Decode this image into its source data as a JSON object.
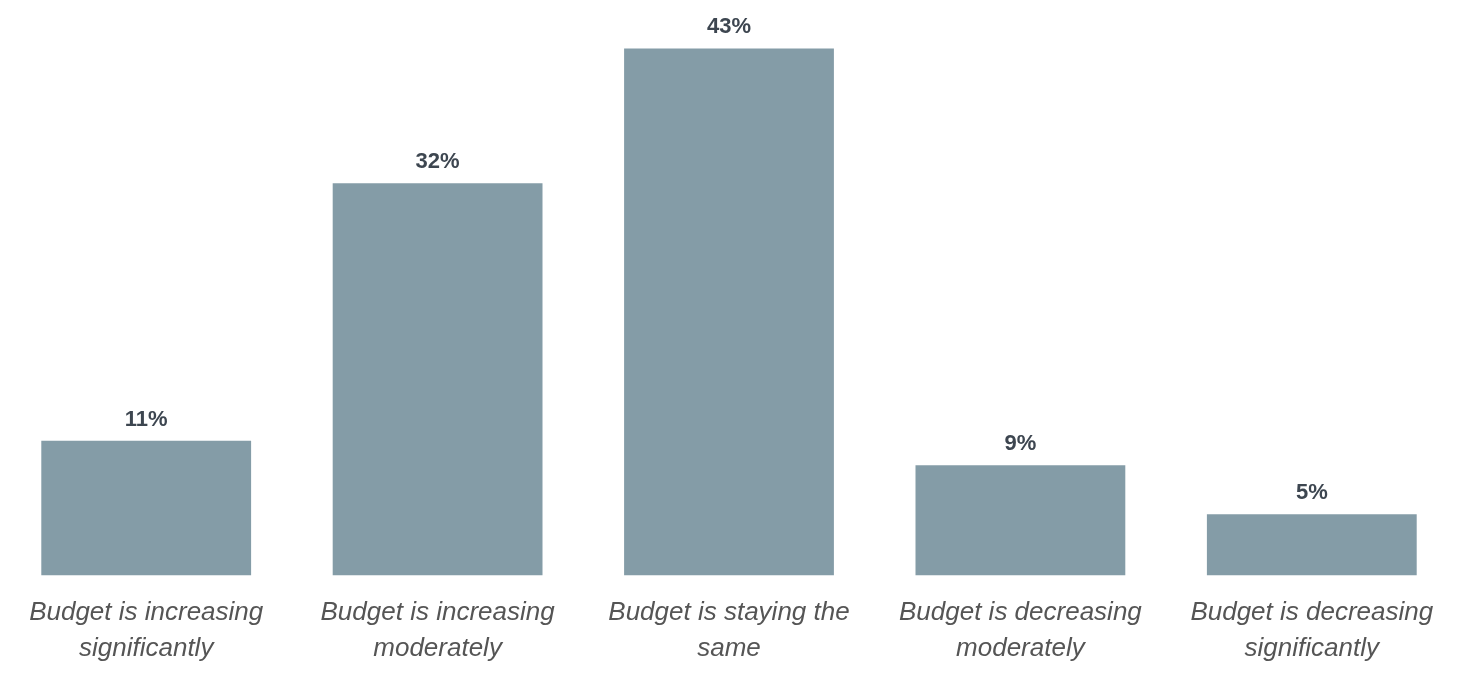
{
  "chart_data": {
    "type": "bar",
    "categories": [
      "Budget is increasing significantly",
      "Budget is increasing moderately",
      "Budget is staying the same",
      "Budget is decreasing moderately",
      "Budget is decreasing significantly"
    ],
    "values": [
      11,
      32,
      43,
      9,
      5
    ],
    "value_labels": [
      "11%",
      "32%",
      "43%",
      "9%",
      "5%"
    ],
    "color": "#849ca7",
    "grid": false,
    "tick_labels": "x"
  }
}
